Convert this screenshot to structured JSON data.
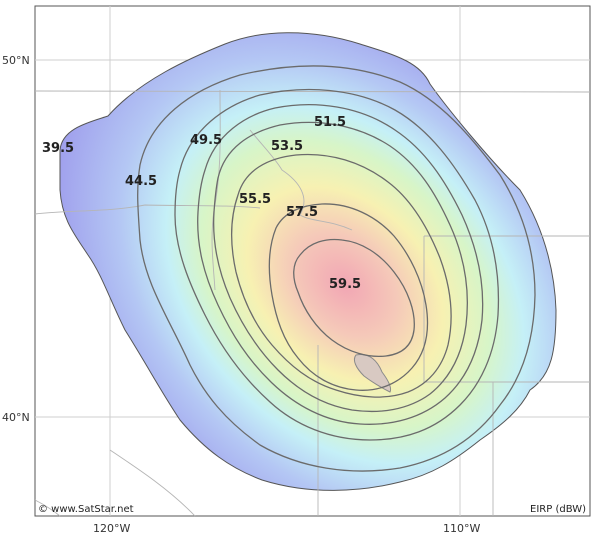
{
  "map": {
    "contour_labels": [
      "39.5",
      "44.5",
      "49.5",
      "51.5",
      "53.5",
      "55.5",
      "57.5",
      "59.5"
    ],
    "lat_labels": [
      "50°N",
      "40°N"
    ],
    "lon_labels": [
      "120°W",
      "110°W"
    ],
    "credit": "© www.SatStar.net",
    "unit_label": "EIRP (dBW)"
  },
  "colors": {
    "outer": "#9fa0ee",
    "blue": "#b6c8f4",
    "cyan": "#c8f2f5",
    "green": "#d8f5c8",
    "yellow": "#f6f3b3",
    "peach": "#f6d1b7",
    "core": "#f3b4bc",
    "contour": "#666666",
    "grid": "#c9c9c9",
    "border": "#a9a9a9"
  }
}
